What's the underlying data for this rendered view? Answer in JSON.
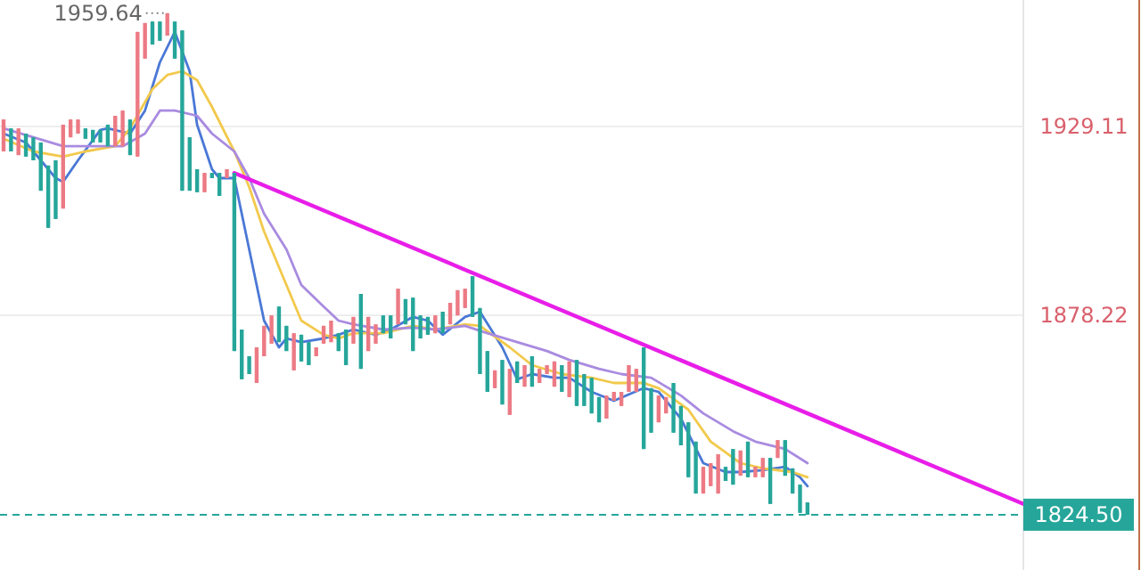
{
  "chart_data": {
    "type": "candlestick",
    "categories": [
      null,
      null,
      null,
      null,
      null,
      null,
      null,
      null,
      null,
      null,
      null,
      null,
      null,
      null,
      null,
      null,
      null,
      null,
      null,
      null,
      null,
      null,
      null,
      null,
      null,
      null,
      null,
      null,
      null,
      null,
      null,
      null,
      null,
      null,
      null,
      null,
      null,
      null,
      null,
      null,
      null,
      null,
      null,
      null,
      null,
      null,
      null,
      null,
      null,
      null,
      null,
      null,
      null,
      null,
      null,
      null,
      null,
      null,
      null,
      null,
      null,
      null,
      null,
      null,
      null,
      null,
      null,
      null,
      null,
      null,
      null,
      null,
      null,
      null,
      null,
      null,
      null,
      null,
      null,
      null,
      null,
      null,
      null,
      null,
      null,
      null,
      null,
      null,
      null,
      null,
      null,
      null,
      null,
      null,
      null,
      null,
      null,
      null,
      null,
      null,
      null,
      null,
      null,
      null,
      null,
      null,
      null,
      null,
      null,
      null,
      null,
      null,
      null,
      null,
      null,
      null,
      null,
      null,
      null,
      null,
      null,
      null,
      null,
      null,
      null,
      null,
      null,
      null,
      null,
      null,
      null,
      null,
      null,
      null,
      null,
      null,
      null,
      null
    ],
    "ohlc": [
      [
        1922.4,
        1931.0,
        1922.4,
        1931.0
      ],
      [
        1928.6,
        1928.6,
        1922.4,
        1922.4
      ],
      [
        1921.4,
        1928.6,
        1921.4,
        1928.6
      ],
      [
        1927.2,
        1927.2,
        1921.0,
        1921.0
      ],
      [
        1926.2,
        1926.2,
        1920.0,
        1920.0
      ],
      [
        1924.8,
        1924.8,
        1911.8,
        1911.8
      ],
      [
        1918.6,
        1918.6,
        1901.8,
        1901.8
      ],
      [
        1920.0,
        1920.0,
        1904.2,
        1904.2
      ],
      [
        1907.0,
        1929.6,
        1907.0,
        1929.6
      ],
      [
        1926.2,
        1931.0,
        1926.2,
        1931.0
      ],
      [
        1927.2,
        1931.0,
        1927.2,
        1931.0
      ],
      [
        1928.6,
        1928.6,
        1925.8,
        1925.8
      ],
      [
        1928.2,
        1928.2,
        1924.8,
        1924.8
      ],
      [
        1928.2,
        1928.2,
        1924.8,
        1924.8
      ],
      [
        1929.6,
        1929.6,
        1923.8,
        1923.8
      ],
      [
        1923.8,
        1932.0,
        1923.8,
        1932.0
      ],
      [
        1923.8,
        1933.4,
        1923.8,
        1933.4
      ],
      [
        1931.0,
        1931.0,
        1921.4,
        1921.4
      ],
      [
        1921.0,
        1954.6,
        1921.0,
        1954.6
      ],
      [
        1947.4,
        1957.0,
        1947.4,
        1957.0
      ],
      [
        1957.4,
        1957.4,
        1951.2,
        1951.2
      ],
      [
        1957.4,
        1957.4,
        1952.2,
        1952.2
      ],
      [
        1953.6,
        1959.64,
        1953.6,
        1959.64
      ],
      [
        1957.4,
        1957.4,
        1947.4,
        1947.4
      ],
      [
        1955.0,
        1955.0,
        1911.8,
        1911.8
      ],
      [
        1926.2,
        1926.2,
        1911.8,
        1911.8
      ],
      [
        1917.6,
        1917.6,
        1911.4,
        1911.4
      ],
      [
        1911.4,
        1916.6,
        1911.4,
        1916.6
      ],
      [
        1916.6,
        1916.6,
        1915.2,
        1915.2
      ],
      [
        1916.6,
        1916.6,
        1910.4,
        1910.4
      ],
      [
        1915.2,
        1917.6,
        1915.2,
        1917.6
      ],
      [
        1916.6,
        1916.6,
        1868.6,
        1868.6
      ],
      [
        1874.4,
        1874.4,
        1861.0,
        1861.0
      ],
      [
        1867.2,
        1867.2,
        1862.4,
        1862.4
      ],
      [
        1860.0,
        1869.6,
        1860.0,
        1869.6
      ],
      [
        1867.2,
        1875.4,
        1867.2,
        1875.4
      ],
      [
        1870.6,
        1878.2,
        1870.6,
        1878.2
      ],
      [
        1880.6,
        1880.6,
        1871.0,
        1871.0
      ],
      [
        1875.4,
        1875.4,
        1868.6,
        1868.6
      ],
      [
        1863.4,
        1873.4,
        1863.4,
        1873.4
      ],
      [
        1873.0,
        1873.0,
        1865.8,
        1865.8
      ],
      [
        1871.0,
        1871.0,
        1864.8,
        1864.8
      ],
      [
        1867.2,
        1869.6,
        1867.2,
        1869.6
      ],
      [
        1870.6,
        1875.4,
        1870.6,
        1875.4
      ],
      [
        1871.0,
        1876.8,
        1871.0,
        1876.8
      ],
      [
        1873.4,
        1873.4,
        1868.6,
        1868.6
      ],
      [
        1874.4,
        1874.4,
        1864.8,
        1864.8
      ],
      [
        1870.6,
        1877.8,
        1870.6,
        1877.8
      ],
      [
        1884.0,
        1884.0,
        1863.8,
        1863.8
      ],
      [
        1868.6,
        1877.8,
        1868.6,
        1877.8
      ],
      [
        1870.6,
        1875.8,
        1870.6,
        1875.8
      ],
      [
        1878.2,
        1878.2,
        1873.4,
        1873.4
      ],
      [
        1878.2,
        1878.2,
        1872.0,
        1872.0
      ],
      [
        1875.8,
        1885.4,
        1875.8,
        1885.4
      ],
      [
        1882.6,
        1882.6,
        1875.8,
        1875.8
      ],
      [
        1883.0,
        1883.0,
        1868.6,
        1868.6
      ],
      [
        1878.2,
        1878.2,
        1872.0,
        1872.0
      ],
      [
        1877.8,
        1877.8,
        1873.0,
        1873.0
      ],
      [
        1873.4,
        1878.2,
        1873.4,
        1878.2
      ],
      [
        1879.2,
        1879.2,
        1873.4,
        1873.4
      ],
      [
        1875.8,
        1881.6,
        1875.8,
        1881.6
      ],
      [
        1878.2,
        1885.0,
        1878.2,
        1885.0
      ],
      [
        1880.2,
        1885.4,
        1880.2,
        1885.4
      ],
      [
        1888.8,
        1888.8,
        1877.8,
        1877.8
      ],
      [
        1880.2,
        1880.2,
        1862.4,
        1862.4
      ],
      [
        1868.6,
        1868.6,
        1857.6,
        1857.6
      ],
      [
        1858.6,
        1863.4,
        1858.6,
        1863.4
      ],
      [
        1866.2,
        1866.2,
        1854.2,
        1854.2
      ],
      [
        1851.4,
        1863.8,
        1851.4,
        1863.8
      ],
      [
        1865.8,
        1865.8,
        1860.0,
        1860.0
      ],
      [
        1859.0,
        1864.8,
        1859.0,
        1864.8
      ],
      [
        1867.2,
        1867.2,
        1859.0,
        1859.0
      ],
      [
        1860.0,
        1863.8,
        1860.0,
        1863.8
      ],
      [
        1862.4,
        1864.8,
        1862.4,
        1864.8
      ],
      [
        1859.0,
        1865.8,
        1859.0,
        1865.8
      ],
      [
        1864.8,
        1864.8,
        1857.6,
        1857.6
      ],
      [
        1856.2,
        1865.8,
        1856.2,
        1865.8
      ],
      [
        1866.2,
        1866.2,
        1853.8,
        1853.8
      ],
      [
        1862.4,
        1862.4,
        1853.8,
        1853.8
      ],
      [
        1861.4,
        1861.4,
        1851.8,
        1851.8
      ],
      [
        1856.2,
        1856.2,
        1849.4,
        1849.4
      ],
      [
        1850.4,
        1856.6,
        1850.4,
        1856.6
      ],
      [
        1855.2,
        1857.6,
        1855.2,
        1857.6
      ],
      [
        1853.8,
        1857.6,
        1853.8,
        1857.6
      ],
      [
        1857.6,
        1864.8,
        1857.6,
        1864.8
      ],
      [
        1857.6,
        1863.8,
        1857.6,
        1863.8
      ],
      [
        1869.6,
        1869.6,
        1842.2,
        1842.2
      ],
      [
        1858.6,
        1858.6,
        1846.6,
        1846.6
      ],
      [
        1849.4,
        1856.6,
        1849.4,
        1856.6
      ],
      [
        1851.8,
        1856.2,
        1851.8,
        1856.2
      ],
      [
        1860.0,
        1860.0,
        1846.6,
        1846.6
      ],
      [
        1853.8,
        1853.8,
        1843.2,
        1843.2
      ],
      [
        1849.4,
        1849.4,
        1834.6,
        1834.6
      ],
      [
        1844.2,
        1844.2,
        1830.2,
        1830.2
      ],
      [
        1830.2,
        1837.4,
        1830.2,
        1837.4
      ],
      [
        1832.2,
        1838.4,
        1832.2,
        1838.4
      ],
      [
        1830.2,
        1840.8,
        1830.2,
        1840.8
      ],
      [
        1837.4,
        1837.4,
        1833.6,
        1833.6
      ],
      [
        1842.2,
        1842.2,
        1832.6,
        1832.6
      ],
      [
        1835.0,
        1841.8,
        1835.0,
        1841.8
      ],
      [
        1844.2,
        1844.2,
        1834.6,
        1834.6
      ],
      [
        1834.6,
        1837.4,
        1834.6,
        1837.4
      ],
      [
        1834.6,
        1839.8,
        1834.6,
        1839.8
      ],
      [
        1839.8,
        1839.8,
        1827.4,
        1827.4
      ],
      [
        1839.8,
        1844.6,
        1839.8,
        1844.6
      ],
      [
        1844.6,
        1844.6,
        1835.0,
        1835.0
      ],
      [
        1837.0,
        1837.0,
        1830.2,
        1830.2
      ],
      [
        1832.6,
        1832.6,
        1825.0,
        1825.0
      ],
      [
        1827.8,
        1827.8,
        1824.5,
        1824.5
      ],
      null,
      null,
      null,
      null,
      null,
      null,
      null,
      null,
      null,
      null,
      null,
      null,
      null,
      null,
      null,
      null,
      null,
      null,
      null,
      null,
      null,
      null,
      null,
      null,
      null,
      null,
      null,
      null,
      null
    ],
    "colors": [
      "#ec7a84",
      "#26a69a",
      "#ec7a84",
      "#26a69a",
      "#26a69a",
      "#26a69a",
      "#26a69a",
      "#26a69a",
      "#ec7a84",
      "#ec7a84",
      "#ec7a84",
      "#26a69a",
      "#26a69a",
      "#26a69a",
      "#26a69a",
      "#ec7a84",
      "#ec7a84",
      "#26a69a",
      "#ec7a84",
      "#ec7a84",
      "#26a69a",
      "#26a69a",
      "#ec7a84",
      "#26a69a",
      "#26a69a",
      "#26a69a",
      "#26a69a",
      "#ec7a84",
      "#26a69a",
      "#26a69a",
      "#ec7a84",
      "#26a69a",
      "#26a69a",
      "#26a69a",
      "#ec7a84",
      "#ec7a84",
      "#ec7a84",
      "#26a69a",
      "#26a69a",
      "#ec7a84",
      "#26a69a",
      "#26a69a",
      "#ec7a84",
      "#ec7a84",
      "#ec7a84",
      "#26a69a",
      "#26a69a",
      "#ec7a84",
      "#26a69a",
      "#ec7a84",
      "#ec7a84",
      "#26a69a",
      "#26a69a",
      "#ec7a84",
      "#26a69a",
      "#26a69a",
      "#26a69a",
      "#26a69a",
      "#ec7a84",
      "#26a69a",
      "#ec7a84",
      "#ec7a84",
      "#ec7a84",
      "#26a69a",
      "#26a69a",
      "#26a69a",
      "#ec7a84",
      "#26a69a",
      "#ec7a84",
      "#26a69a",
      "#ec7a84",
      "#26a69a",
      "#ec7a84",
      "#ec7a84",
      "#ec7a84",
      "#26a69a",
      "#ec7a84",
      "#26a69a",
      "#26a69a",
      "#26a69a",
      "#26a69a",
      "#ec7a84",
      "#ec7a84",
      "#ec7a84",
      "#ec7a84",
      "#ec7a84",
      "#26a69a",
      "#26a69a",
      "#ec7a84",
      "#ec7a84",
      "#26a69a",
      "#26a69a",
      "#26a69a",
      "#26a69a",
      "#ec7a84",
      "#ec7a84",
      "#ec7a84",
      "#26a69a",
      "#26a69a",
      "#ec7a84",
      "#26a69a",
      "#ec7a84",
      "#ec7a84",
      "#26a69a",
      "#ec7a84",
      "#26a69a",
      "#26a69a",
      "#26a69a",
      "#26a69a",
      null,
      null,
      null,
      null,
      null,
      null,
      null,
      null,
      null,
      null,
      null,
      null,
      null,
      null,
      null,
      null,
      null,
      null,
      null,
      null,
      null,
      null,
      null,
      null,
      null,
      null,
      null,
      null,
      null
    ],
    "series": [
      {
        "type": "line",
        "color": "#4a78d6",
        "values": [
          1927.2,
          null,
          null,
          1924.8,
          null,
          null,
          null,
          1915.2,
          1914.2,
          null,
          1920.0,
          null,
          null,
          1928.2,
          1928.6,
          null,
          null,
          1927.2,
          null,
          1933.4,
          null,
          1946.4,
          null,
          1954.6,
          null,
          1944.0,
          1929.6,
          null,
          1917.6,
          1915.2,
          null,
          1915.2,
          null,
          1896.0,
          null,
          1876.8,
          null,
          1869.6,
          1872.0,
          null,
          1871.0,
          null,
          null,
          1872.0,
          null,
          1873.0,
          null,
          1874.4,
          null,
          null,
          1873.0,
          null,
          1874.4,
          null,
          null,
          1877.8,
          null,
          1876.8,
          null,
          1873.0,
          null,
          null,
          1877.8,
          null,
          1879.2,
          null,
          null,
          1869.6,
          null,
          1861.0,
          null,
          1862.4,
          null,
          null,
          1861.4,
          null,
          1861.4,
          null,
          null,
          1857.6,
          null,
          null,
          1855.2,
          null,
          null,
          null,
          1858.6,
          null,
          1857.6,
          null,
          null,
          1850.4,
          null,
          null,
          1838.4,
          null,
          null,
          1836.0,
          null,
          1836.0,
          null,
          null,
          1836.5,
          null,
          null,
          1837.4,
          null,
          1834.6,
          1832.2,
          null,
          null,
          null,
          null,
          null,
          null,
          null,
          null,
          null,
          null,
          null,
          null,
          null,
          null,
          null,
          null,
          null,
          null,
          null,
          null,
          null,
          null,
          null,
          null,
          null,
          null,
          null,
          null,
          null
        ]
      },
      {
        "type": "line",
        "color": "#f2c94c",
        "values": [
          1925.8,
          null,
          null,
          null,
          1922.4,
          null,
          null,
          null,
          1921.0,
          null,
          null,
          1922.4,
          null,
          null,
          null,
          1923.8,
          null,
          1928.6,
          null,
          null,
          1939.2,
          null,
          1943.0,
          null,
          1944.0,
          null,
          1941.6,
          null,
          1934.4,
          null,
          null,
          1922.4,
          null,
          1912.8,
          null,
          1900.8,
          null,
          null,
          1886.4,
          null,
          1876.8,
          null,
          null,
          1873.0,
          null,
          1872.0,
          null,
          1873.4,
          null,
          null,
          null,
          1873.4,
          null,
          null,
          null,
          1875.4,
          null,
          null,
          1874.4,
          null,
          null,
          null,
          1875.8,
          null,
          1875.4,
          null,
          null,
          null,
          1869.6,
          null,
          null,
          1864.8,
          null,
          null,
          null,
          1862.4,
          null,
          null,
          null,
          1861.4,
          null,
          null,
          1860.0,
          null,
          null,
          null,
          1860.0,
          null,
          1858.6,
          null,
          null,
          null,
          1852.8,
          null,
          null,
          1844.2,
          null,
          null,
          null,
          1838.4,
          null,
          null,
          1837.0,
          null,
          null,
          null,
          1836.0,
          null,
          1834.6,
          null,
          null,
          null,
          null,
          null,
          null,
          null,
          null,
          null,
          null,
          null,
          null,
          null,
          null,
          null,
          null,
          null,
          null,
          null,
          null,
          null,
          null,
          null,
          null,
          null,
          null,
          null,
          null,
          null
        ]
      },
      {
        "type": "line",
        "color": "#a98be0",
        "values": [
          1928.6,
          null,
          null,
          null,
          1926.2,
          null,
          null,
          null,
          1923.8,
          null,
          null,
          1923.8,
          null,
          null,
          null,
          null,
          1923.8,
          null,
          null,
          1927.2,
          null,
          1933.4,
          null,
          1933.4,
          null,
          null,
          1932.0,
          null,
          1927.2,
          null,
          null,
          1922.4,
          null,
          1915.2,
          null,
          1905.6,
          null,
          null,
          1896.0,
          null,
          1886.4,
          null,
          null,
          1880.6,
          null,
          1876.8,
          null,
          1875.8,
          null,
          null,
          null,
          1874.4,
          null,
          null,
          null,
          1874.9,
          null,
          null,
          1874.4,
          null,
          null,
          null,
          1875.4,
          null,
          null,
          1873.4,
          null,
          null,
          null,
          1871.0,
          null,
          null,
          null,
          1868.6,
          null,
          null,
          1866.2,
          null,
          null,
          null,
          1863.8,
          null,
          null,
          1862.4,
          null,
          null,
          null,
          1861.4,
          null,
          null,
          null,
          1856.6,
          null,
          null,
          1851.8,
          null,
          null,
          null,
          1847.0,
          null,
          null,
          1844.2,
          null,
          null,
          null,
          1842.2,
          null,
          null,
          1838.4,
          null,
          null,
          null,
          null,
          null,
          null,
          null,
          null,
          null,
          null,
          null,
          null,
          null,
          null,
          null,
          null,
          null,
          null,
          null,
          null,
          null,
          null,
          null,
          null,
          null,
          null,
          null,
          null,
          null
        ]
      },
      {
        "type": "line",
        "color": "#e81ee8",
        "values": [
          null,
          null,
          null,
          null,
          null,
          null,
          null,
          null,
          null,
          null,
          null,
          null,
          null,
          null,
          null,
          null,
          null,
          null,
          null,
          null,
          null,
          null,
          null,
          null,
          null,
          null,
          null,
          null,
          null,
          null,
          null,
          1916.6,
          null,
          null,
          null,
          null,
          null,
          null,
          null,
          null,
          null,
          null,
          null,
          null,
          null,
          null,
          null,
          null,
          null,
          null,
          null,
          null,
          null,
          null,
          null,
          null,
          null,
          null,
          null,
          null,
          null,
          null,
          null,
          null,
          null,
          null,
          null,
          null,
          null,
          null,
          null,
          null,
          null,
          null,
          null,
          null,
          null,
          null,
          null,
          null,
          null,
          null,
          null,
          null,
          null,
          null,
          null,
          null,
          null,
          null,
          null,
          null,
          null,
          null,
          null,
          null,
          null,
          null,
          null,
          null,
          null,
          null,
          null,
          null,
          null,
          null,
          null,
          null,
          null,
          null,
          null,
          null,
          null,
          null,
          null,
          null,
          null,
          null,
          null,
          null,
          null,
          null,
          null,
          null,
          null,
          null,
          null,
          null,
          null,
          null,
          null,
          null,
          null,
          null,
          null,
          null,
          null,
          1827.4
        ]
      }
    ],
    "ylim": [
      1809.6,
      1963.2
    ],
    "yticks": [
      1929.11,
      1878.22
    ],
    "grid": "y",
    "tick_labels": "y",
    "ref_lines": [
      {
        "axis": "y",
        "value": 1824.5,
        "label": "1824.50",
        "color": "#26a69a",
        "line_style": "dashed"
      }
    ],
    "annotations": [
      "1959.64"
    ]
  }
}
